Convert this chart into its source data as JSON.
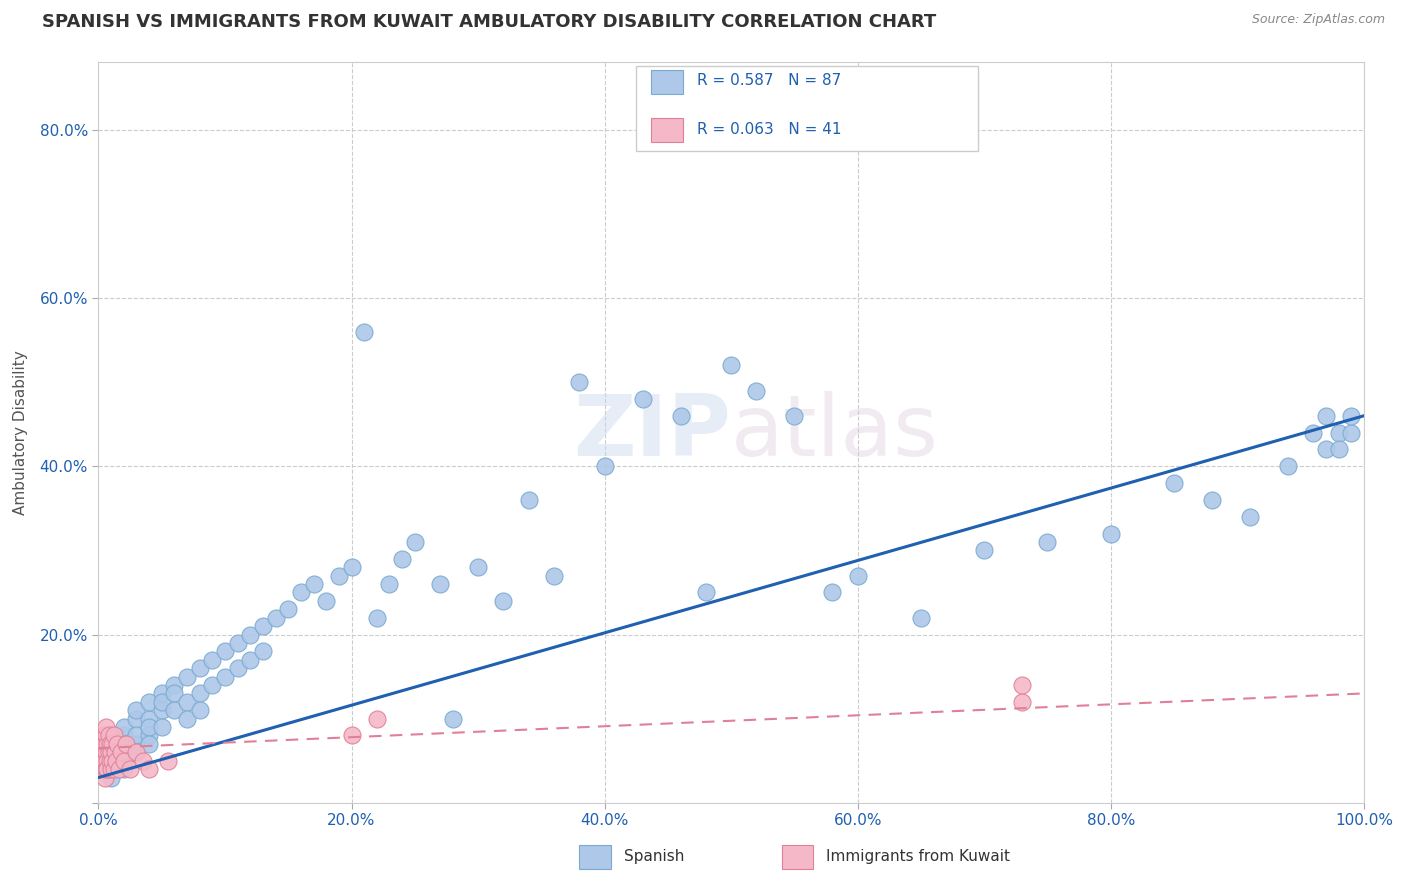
{
  "title": "SPANISH VS IMMIGRANTS FROM KUWAIT AMBULATORY DISABILITY CORRELATION CHART",
  "source": "Source: ZipAtlas.com",
  "ylabel": "Ambulatory Disability",
  "xlim": [
    0.0,
    1.0
  ],
  "ylim": [
    0.0,
    0.88
  ],
  "xtick_labels": [
    "0.0%",
    "20.0%",
    "40.0%",
    "60.0%",
    "80.0%",
    "100.0%"
  ],
  "ytick_labels": [
    "",
    "20.0%",
    "40.0%",
    "60.0%",
    "80.0%"
  ],
  "yticks": [
    0.0,
    0.2,
    0.4,
    0.6,
    0.8
  ],
  "series1_color": "#adc8e8",
  "series1_edge": "#7aaad0",
  "series2_color": "#f4b8c8",
  "series2_edge": "#e08098",
  "line1_color": "#2060b0",
  "line2_color": "#e08098",
  "watermark": "ZIPatlas",
  "background_color": "#ffffff",
  "spanish_x": [
    0.01,
    0.01,
    0.01,
    0.01,
    0.01,
    0.02,
    0.02,
    0.02,
    0.02,
    0.02,
    0.02,
    0.03,
    0.03,
    0.03,
    0.03,
    0.03,
    0.04,
    0.04,
    0.04,
    0.04,
    0.04,
    0.05,
    0.05,
    0.05,
    0.05,
    0.06,
    0.06,
    0.06,
    0.07,
    0.07,
    0.07,
    0.08,
    0.08,
    0.08,
    0.09,
    0.09,
    0.1,
    0.1,
    0.11,
    0.11,
    0.12,
    0.12,
    0.13,
    0.13,
    0.14,
    0.15,
    0.16,
    0.17,
    0.18,
    0.19,
    0.2,
    0.21,
    0.22,
    0.23,
    0.24,
    0.25,
    0.27,
    0.28,
    0.3,
    0.32,
    0.34,
    0.36,
    0.38,
    0.4,
    0.43,
    0.46,
    0.48,
    0.5,
    0.52,
    0.55,
    0.58,
    0.6,
    0.65,
    0.7,
    0.75,
    0.8,
    0.85,
    0.88,
    0.91,
    0.94,
    0.96,
    0.97,
    0.97,
    0.98,
    0.98,
    0.99,
    0.99
  ],
  "spanish_y": [
    0.05,
    0.04,
    0.06,
    0.03,
    0.07,
    0.06,
    0.05,
    0.08,
    0.04,
    0.07,
    0.09,
    0.1,
    0.07,
    0.08,
    0.06,
    0.11,
    0.1,
    0.08,
    0.12,
    0.09,
    0.07,
    0.13,
    0.11,
    0.09,
    0.12,
    0.14,
    0.11,
    0.13,
    0.15,
    0.12,
    0.1,
    0.16,
    0.13,
    0.11,
    0.17,
    0.14,
    0.18,
    0.15,
    0.19,
    0.16,
    0.2,
    0.17,
    0.21,
    0.18,
    0.22,
    0.23,
    0.25,
    0.26,
    0.24,
    0.27,
    0.28,
    0.56,
    0.22,
    0.26,
    0.29,
    0.31,
    0.26,
    0.1,
    0.28,
    0.24,
    0.36,
    0.27,
    0.5,
    0.4,
    0.48,
    0.46,
    0.25,
    0.52,
    0.49,
    0.46,
    0.25,
    0.27,
    0.22,
    0.3,
    0.31,
    0.32,
    0.38,
    0.36,
    0.34,
    0.4,
    0.44,
    0.42,
    0.46,
    0.44,
    0.42,
    0.44,
    0.46
  ],
  "kuwait_x": [
    0.003,
    0.003,
    0.004,
    0.004,
    0.004,
    0.005,
    0.005,
    0.005,
    0.006,
    0.006,
    0.006,
    0.006,
    0.007,
    0.007,
    0.007,
    0.008,
    0.008,
    0.009,
    0.009,
    0.01,
    0.01,
    0.011,
    0.011,
    0.012,
    0.012,
    0.013,
    0.014,
    0.015,
    0.016,
    0.018,
    0.02,
    0.022,
    0.025,
    0.03,
    0.035,
    0.04,
    0.055,
    0.2,
    0.22,
    0.73,
    0.73
  ],
  "kuwait_y": [
    0.06,
    0.04,
    0.07,
    0.05,
    0.08,
    0.05,
    0.07,
    0.03,
    0.06,
    0.04,
    0.08,
    0.09,
    0.05,
    0.07,
    0.04,
    0.06,
    0.08,
    0.05,
    0.07,
    0.04,
    0.06,
    0.07,
    0.05,
    0.08,
    0.04,
    0.06,
    0.05,
    0.07,
    0.04,
    0.06,
    0.05,
    0.07,
    0.04,
    0.06,
    0.05,
    0.04,
    0.05,
    0.08,
    0.1,
    0.12,
    0.14
  ],
  "line1_x0": 0.0,
  "line1_x1": 1.0,
  "line1_y0": 0.03,
  "line1_y1": 0.46,
  "line2_x0": 0.0,
  "line2_x1": 1.0,
  "line2_y0": 0.065,
  "line2_y1": 0.13
}
